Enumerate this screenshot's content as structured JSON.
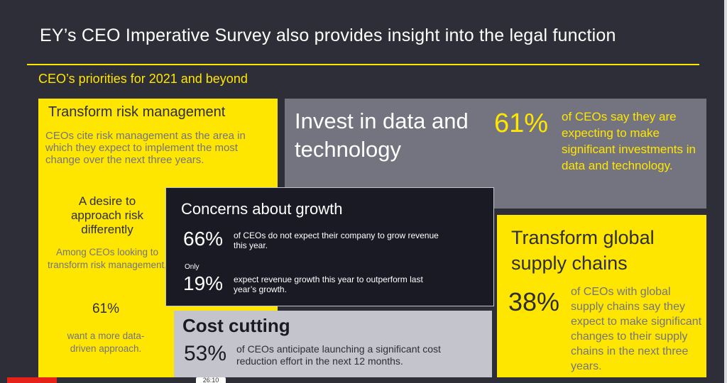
{
  "slide": {
    "title": "EY’s CEO Imperative Survey also provides insight into the legal function",
    "subtitle": "CEO’s priorities for 2021 and beyond"
  },
  "risk": {
    "heading": "Transform risk management",
    "body": "CEOs cite risk management as the area in which they expect to implement the most change over the next three years.",
    "desire": "A desire to approach risk differently",
    "among": "Among CEOs looking to transform risk management,",
    "percent": "61%",
    "want": "want a more data-driven approach."
  },
  "invest": {
    "heading": "Invest in data and technology",
    "percent": "61%",
    "text": "of CEOs say they are expecting to make significant investments in data and technology."
  },
  "concerns": {
    "heading": "Concerns about growth",
    "pct1": "66%",
    "text1": "of CEOs do not expect their company to grow revenue this year.",
    "only": "Only",
    "pct2": "19%",
    "text2": "expect revenue growth this year to outperform last year’s growth."
  },
  "cost": {
    "heading": "Cost cutting",
    "percent": "53%",
    "text": "of CEOs anticipate launching a significant cost reduction effort in the next 12 months."
  },
  "supply": {
    "heading": "Transform global supply chains",
    "percent": "38%",
    "text": "of CEOs with global supply chains say they expect to make significant changes to their supply chains in the next three years."
  },
  "player": {
    "timestamp": "26:10"
  },
  "colors": {
    "background": "#2e2e38",
    "accent_yellow": "#ffe600",
    "gray": "#747480",
    "dark": "#1a1a24",
    "light_gray": "#c4c4cd"
  }
}
